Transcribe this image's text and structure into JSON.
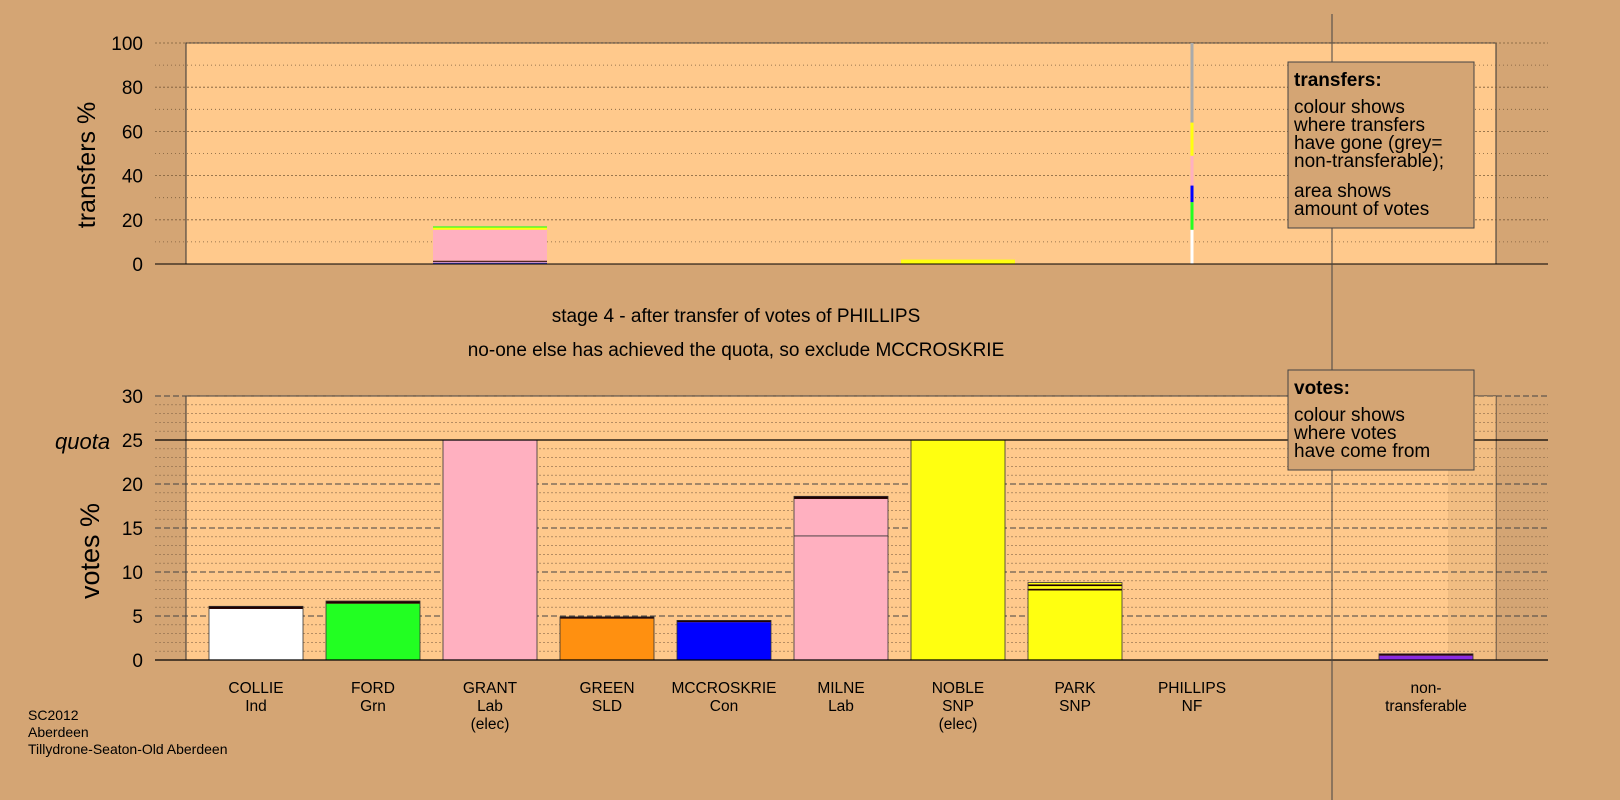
{
  "title": "stage 4 - after transfer of votes of PHILLIPS",
  "subtitle": "no-one else has achieved the quota, so exclude MCCROSKRIE",
  "footer_lines": [
    "SC2012",
    "Aberdeen",
    "Tillydrone-Seaton-Old Aberdeen"
  ],
  "colors": {
    "background": "#d4a574",
    "panel": "#ffc98c",
    "white": "#ffffff",
    "green": "#22ff22",
    "pink": "#ffb0c0",
    "orange": "#ff9010",
    "blue": "#0000ff",
    "yellow": "#ffff10",
    "grey": "#aaaaaa",
    "purple": "#8a2be2",
    "dark": "#220000"
  },
  "legends": {
    "transfers": {
      "heading": "transfers:",
      "lines1": [
        "colour shows",
        "where transfers",
        "have gone (grey=",
        "non-transferable);"
      ],
      "lines2": [
        "area shows",
        "amount of votes"
      ]
    },
    "votes": {
      "heading": "votes:",
      "lines1": [
        "colour shows",
        "where votes",
        "have come from"
      ]
    }
  },
  "chart_data": [
    {
      "type": "bar",
      "ylabel": "transfers %",
      "ylim": [
        0,
        100
      ],
      "yticks": [
        0,
        20,
        40,
        60,
        80,
        100
      ],
      "grid": true,
      "categories": [
        "COLLIE",
        "FORD",
        "GRANT",
        "GREEN",
        "MCCROSKRIE",
        "MILNE",
        "NOBLE",
        "PARK",
        "PHILLIPS",
        "non-transferable"
      ],
      "bars": [
        {
          "category": "GRANT",
          "segments": [
            {
              "color": "green",
              "value": 0.3
            },
            {
              "color": "blue",
              "value": 0.3
            },
            {
              "color": "pink",
              "value": 0.4
            },
            {
              "color": "dark",
              "value": 0.5
            },
            {
              "color": "pink",
              "value": 14.0
            },
            {
              "color": "yellow",
              "value": 1.0
            },
            {
              "color": "green",
              "value": 0.5
            }
          ]
        },
        {
          "category": "NOBLE",
          "segments": [
            {
              "color": "yellow",
              "value": 2.0
            }
          ]
        }
      ],
      "transfer_column": {
        "category": "PHILLIPS",
        "segments": [
          {
            "color": "white",
            "value": 15.5
          },
          {
            "color": "green",
            "value": 12.5
          },
          {
            "color": "blue",
            "value": 7.5
          },
          {
            "color": "pink",
            "value": 13.5
          },
          {
            "color": "yellow",
            "value": 15.0
          },
          {
            "color": "grey",
            "value": 36.0
          }
        ]
      }
    },
    {
      "type": "bar",
      "ylabel": "votes %",
      "ylim": [
        0,
        30
      ],
      "yticks": [
        0,
        5,
        10,
        15,
        20,
        25,
        30
      ],
      "quota": 25,
      "quota_label": "quota",
      "grid": true,
      "categories": [
        "COLLIE",
        "FORD",
        "GRANT",
        "GREEN",
        "MCCROSKRIE",
        "MILNE",
        "NOBLE",
        "PARK",
        "PHILLIPS",
        "non-transferable"
      ],
      "candidates": [
        {
          "name": "COLLIE",
          "party": "Ind",
          "note": "",
          "segments": [
            {
              "color": "white",
              "value": 5.8
            },
            {
              "color": "dark",
              "value": 0.3
            }
          ]
        },
        {
          "name": "FORD",
          "party": "Grn",
          "note": "",
          "segments": [
            {
              "color": "green",
              "value": 6.4
            },
            {
              "color": "dark",
              "value": 0.3
            }
          ]
        },
        {
          "name": "GRANT",
          "party": "Lab",
          "note": "(elec)",
          "segments": [
            {
              "color": "pink",
              "value": 25.0
            }
          ]
        },
        {
          "name": "GREEN",
          "party": "SLD",
          "note": "",
          "segments": [
            {
              "color": "orange",
              "value": 4.7
            },
            {
              "color": "dark",
              "value": 0.2
            }
          ]
        },
        {
          "name": "MCCROSKRIE",
          "party": "Con",
          "note": "",
          "segments": [
            {
              "color": "blue",
              "value": 4.3
            },
            {
              "color": "dark",
              "value": 0.2
            }
          ]
        },
        {
          "name": "MILNE",
          "party": "Lab",
          "note": "",
          "segments": [
            {
              "color": "pink",
              "value": 14.1
            },
            {
              "color": "pink",
              "value": 4.2
            },
            {
              "color": "dark",
              "value": 0.3
            }
          ]
        },
        {
          "name": "NOBLE",
          "party": "SNP",
          "note": "(elec)",
          "segments": [
            {
              "color": "yellow",
              "value": 25.0
            }
          ]
        },
        {
          "name": "PARK",
          "party": "SNP",
          "note": "",
          "segments": [
            {
              "color": "yellow",
              "value": 7.9
            },
            {
              "color": "dark",
              "value": 0.2
            },
            {
              "color": "yellow",
              "value": 0.3
            },
            {
              "color": "dark",
              "value": 0.2
            },
            {
              "color": "yellow",
              "value": 0.2
            }
          ]
        },
        {
          "name": "PHILLIPS",
          "party": "NF",
          "note": "",
          "segments": []
        },
        {
          "name": "non-",
          "party": "transferable",
          "note": "",
          "segments": [
            {
              "color": "purple",
              "value": 0.5
            },
            {
              "color": "dark",
              "value": 0.2
            }
          ]
        }
      ]
    }
  ]
}
